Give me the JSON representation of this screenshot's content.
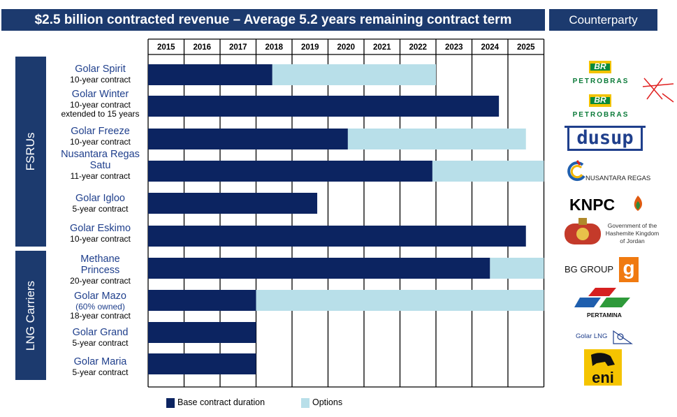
{
  "header": {
    "title": "$2.5 billion contracted revenue – Average 5.2 years remaining contract term",
    "counterparty_label": "Counterparty"
  },
  "groups": [
    {
      "label": "FSRUs"
    },
    {
      "label": "LNG Carriers"
    }
  ],
  "legend": {
    "base_label": "Base contract duration",
    "options_label": "Options"
  },
  "colors": {
    "base": "#0c2461",
    "options": "#b8dfe9",
    "header": "#1c3a6e",
    "label": "#1f3f8c"
  },
  "chart_data": {
    "type": "bar",
    "orientation": "horizontal-stacked",
    "x": [
      "2015",
      "2016",
      "2017",
      "2018",
      "2019",
      "2020",
      "2021",
      "2022",
      "2023",
      "2024",
      "2025"
    ],
    "categories": [
      "Golar Spirit",
      "Golar Winter",
      "Golar Freeze",
      "Nusantara Regas Satu",
      "Golar Igloo",
      "Golar Eskimo",
      "Methane Princess",
      "Golar Mazo",
      "Golar Grand",
      "Golar Maria"
    ],
    "series": [
      {
        "name": "Base contract duration",
        "start": [
          2015,
          2015,
          2015,
          2015,
          2015,
          2015,
          2015,
          2015,
          2015,
          2015
        ],
        "end": [
          2018.45,
          2024.75,
          2020.55,
          2022.9,
          2019.7,
          2025.5,
          2024.5,
          2018.0,
          2018.0,
          2018.0
        ]
      },
      {
        "name": "Options",
        "start": [
          2018.45,
          null,
          2020.55,
          2022.9,
          null,
          null,
          2024.5,
          2018.0,
          null,
          null
        ],
        "end": [
          2023.0,
          null,
          2025.5,
          2026.0,
          null,
          null,
          2026.0,
          2026.0,
          null,
          null
        ]
      }
    ]
  },
  "vessels": [
    {
      "name": "Golar Spirit",
      "sub": "",
      "term": "10-year contract"
    },
    {
      "name": "Golar Winter",
      "sub": "",
      "term": "10-year contract extended to 15 years"
    },
    {
      "name": "Golar Freeze",
      "sub": "",
      "term": "10-year contract"
    },
    {
      "name": "Nusantara Regas Satu",
      "sub": "",
      "term": "11-year contract"
    },
    {
      "name": "Golar Igloo",
      "sub": "",
      "term": "5-year contract"
    },
    {
      "name": "Golar Eskimo",
      "sub": "",
      "term": "10-year contract"
    },
    {
      "name": "Methane Princess",
      "sub": "",
      "term": "20-year contract"
    },
    {
      "name": "Golar Mazo",
      "sub": "(60% owned)",
      "term": "18-year contract"
    },
    {
      "name": "Golar Grand",
      "sub": "",
      "term": "5-year contract"
    },
    {
      "name": "Golar Maria",
      "sub": "",
      "term": "5-year contract"
    }
  ],
  "counterparties": [
    {
      "name": "PETROBRAS",
      "mark": "BR"
    },
    {
      "name": "PETROBRAS",
      "mark": "BR"
    },
    {
      "name": "dusup"
    },
    {
      "name": "NUSANTARA REGAS"
    },
    {
      "name": "KNPC"
    },
    {
      "name": "Government of the Hashemite Kingdom of Jordan"
    },
    {
      "name": "BG GROUP",
      "mark": "g"
    },
    {
      "name": "PERTAMINA"
    },
    {
      "name": "Golar LNG"
    },
    {
      "name": "eni"
    }
  ]
}
